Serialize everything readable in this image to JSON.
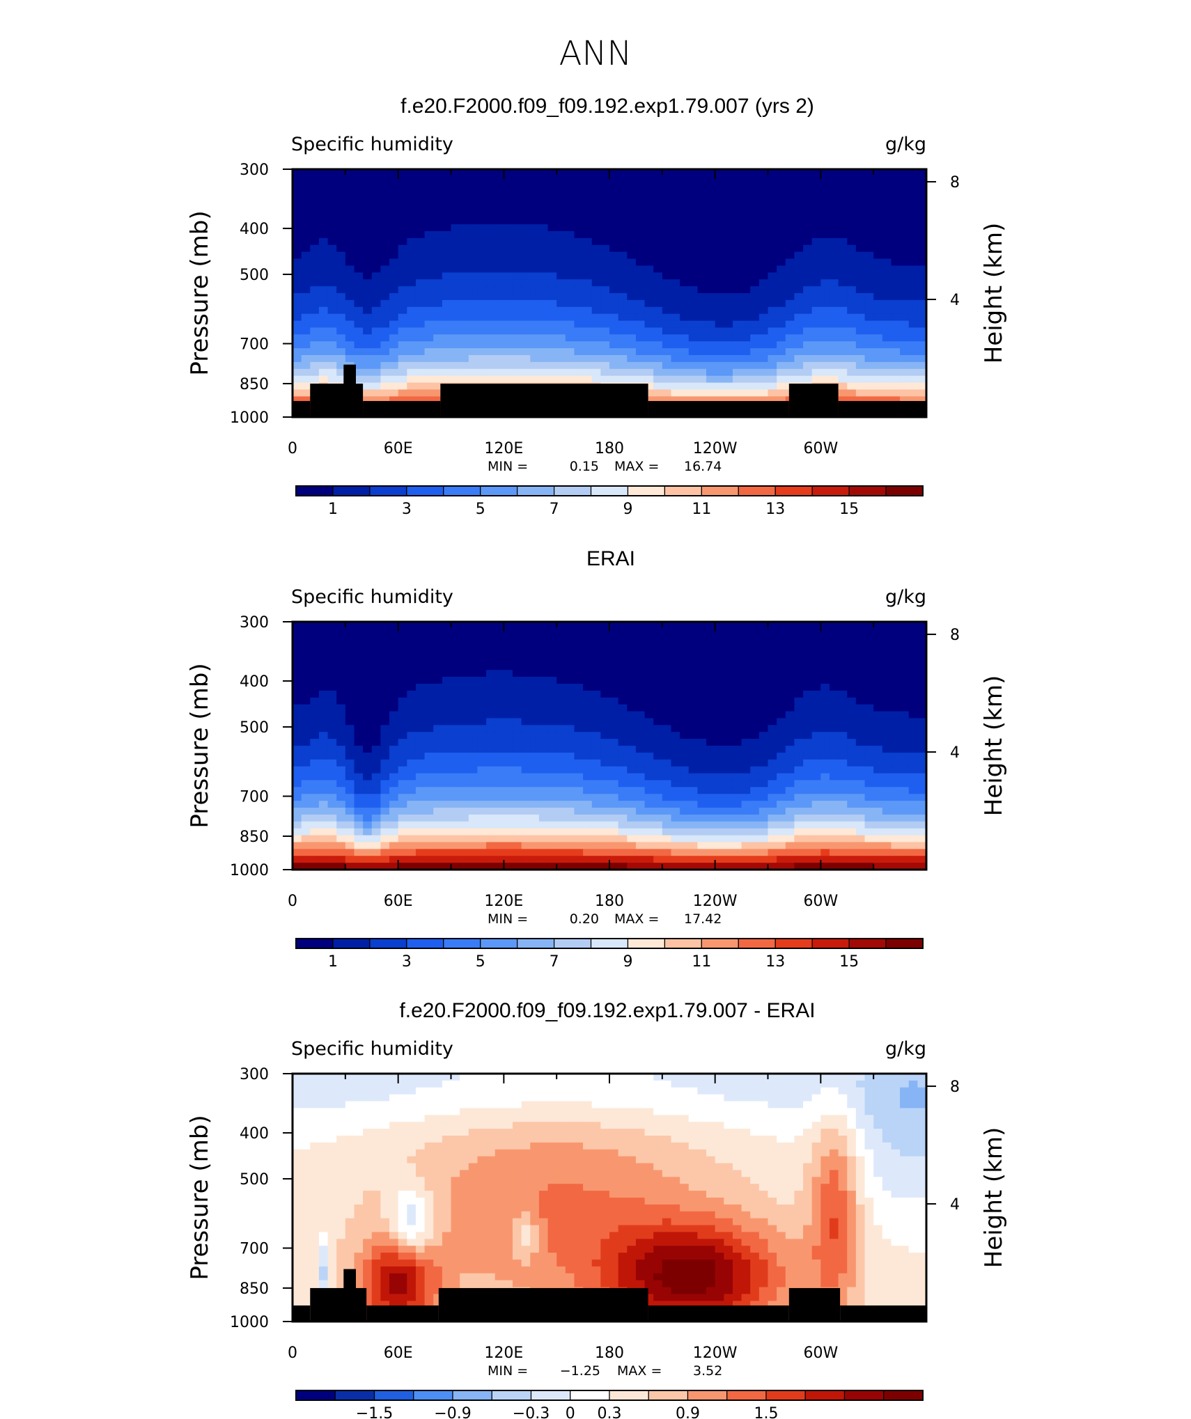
{
  "figure_title": "ANN",
  "colors": {
    "seq_levels": [
      "#00007f",
      "#001fa7",
      "#0a3fcf",
      "#1f5ff0",
      "#3a7cf7",
      "#5c98f7",
      "#87b4f5",
      "#b3ccf3",
      "#d8e7f9",
      "#ffe8d6",
      "#fdc3a4",
      "#f8976f",
      "#f26843",
      "#e53c1c",
      "#c91b0b",
      "#a30a06",
      "#7d0000"
    ],
    "diff_levels": [
      "#00007f",
      "#0a2ea8",
      "#1f5fe0",
      "#4d8ef5",
      "#87b4f5",
      "#bad4f8",
      "#dde9fb",
      "#ffffff",
      "#fde8d8",
      "#fcc7a8",
      "#f8976f",
      "#f26843",
      "#e03c1c",
      "#c01608",
      "#980404",
      "#7d0000"
    ]
  },
  "chart_data": [
    {
      "type": "heatmap",
      "title": "f.e20.F2000.f09_f09.192.exp1.79.007 (yrs 2)",
      "left_label": "Specific humidity",
      "right_label": "g/kg",
      "ylabel": "Pressure (mb)",
      "ylabel_right": "Height (km)",
      "x_ticks": [
        "0",
        "60E",
        "120E",
        "180",
        "120W",
        "60W"
      ],
      "x_tick_values": [
        0,
        60,
        120,
        180,
        240,
        300
      ],
      "xlim": [
        0,
        360
      ],
      "y_ticks": [
        "300",
        "400",
        "500",
        "700",
        "850",
        "1000"
      ],
      "y_tick_values": [
        300,
        400,
        500,
        700,
        850,
        1000
      ],
      "ylim": [
        1000,
        300
      ],
      "y_right_ticks": [
        "8",
        "4"
      ],
      "y_right_values": [
        8,
        4
      ],
      "stats": {
        "min_label": "MIN =",
        "min": "0.15",
        "max_label": "MAX =",
        "max": "16.74"
      },
      "colorbar": {
        "ticks": [
          "1",
          "3",
          "5",
          "7",
          "9",
          "11",
          "13",
          "15"
        ],
        "values": [
          1,
          3,
          5,
          7,
          9,
          11,
          13,
          15
        ],
        "levels": [
          1,
          2,
          3,
          4,
          5,
          6,
          7,
          8,
          9,
          10,
          11,
          12,
          13,
          14,
          15,
          16
        ]
      },
      "field": {
        "kind": "seq",
        "min": 0.15,
        "max": 16.74
      },
      "terrain": [
        [
          0,
          10,
          1000,
          925
        ],
        [
          10,
          40,
          1000,
          850
        ],
        [
          29,
          36,
          1000,
          775
        ],
        [
          40,
          84,
          1000,
          925
        ],
        [
          84,
          202,
          1000,
          850
        ],
        [
          202,
          282,
          1000,
          925
        ],
        [
          282,
          310,
          1000,
          850
        ],
        [
          310,
          360,
          1000,
          925
        ]
      ]
    },
    {
      "type": "heatmap",
      "title": "ERAI",
      "left_label": "Specific humidity",
      "right_label": "g/kg",
      "ylabel": "Pressure (mb)",
      "ylabel_right": "Height (km)",
      "x_ticks": [
        "0",
        "60E",
        "120E",
        "180",
        "120W",
        "60W"
      ],
      "x_tick_values": [
        0,
        60,
        120,
        180,
        240,
        300
      ],
      "xlim": [
        0,
        360
      ],
      "y_ticks": [
        "300",
        "400",
        "500",
        "700",
        "850",
        "1000"
      ],
      "y_tick_values": [
        300,
        400,
        500,
        700,
        850,
        1000
      ],
      "ylim": [
        1000,
        300
      ],
      "y_right_ticks": [
        "8",
        "4"
      ],
      "y_right_values": [
        8,
        4
      ],
      "stats": {
        "min_label": "MIN =",
        "min": "0.20",
        "max_label": "MAX =",
        "max": "17.42"
      },
      "colorbar": {
        "ticks": [
          "1",
          "3",
          "5",
          "7",
          "9",
          "11",
          "13",
          "15"
        ],
        "values": [
          1,
          3,
          5,
          7,
          9,
          11,
          13,
          15
        ],
        "levels": [
          1,
          2,
          3,
          4,
          5,
          6,
          7,
          8,
          9,
          10,
          11,
          12,
          13,
          14,
          15,
          16
        ]
      },
      "field": {
        "kind": "seq",
        "min": 0.2,
        "max": 17.42
      },
      "terrain": []
    },
    {
      "type": "heatmap",
      "title": "f.e20.F2000.f09_f09.192.exp1.79.007 - ERAI",
      "left_label": "Specific humidity",
      "right_label": "g/kg",
      "ylabel": "Pressure (mb)",
      "ylabel_right": "Height (km)",
      "x_ticks": [
        "0",
        "60E",
        "120E",
        "180",
        "120W",
        "60W"
      ],
      "x_tick_values": [
        0,
        60,
        120,
        180,
        240,
        300
      ],
      "xlim": [
        0,
        360
      ],
      "y_ticks": [
        "300",
        "400",
        "500",
        "700",
        "850",
        "1000"
      ],
      "y_tick_values": [
        300,
        400,
        500,
        700,
        850,
        1000
      ],
      "ylim": [
        1000,
        300
      ],
      "y_right_ticks": [
        "8",
        "4"
      ],
      "y_right_values": [
        8,
        4
      ],
      "stats": {
        "min_label": "MIN =",
        "min": "−1.25",
        "max_label": "MAX =",
        "max": "3.52"
      },
      "colorbar": {
        "ticks": [
          "−1.5",
          "−0.9",
          "−0.3",
          "0",
          "0.3",
          "0.9",
          "1.5"
        ],
        "values": [
          -1.5,
          -0.9,
          -0.3,
          0,
          0.3,
          0.9,
          1.5
        ],
        "levels": [
          -1.8,
          -1.5,
          -1.2,
          -0.9,
          -0.6,
          -0.3,
          0,
          0.3,
          0.6,
          0.9,
          1.2,
          1.5,
          1.8,
          2.1,
          2.4
        ]
      },
      "field": {
        "kind": "diff",
        "min": -1.25,
        "max": 3.52
      },
      "terrain": [
        [
          0,
          10,
          1000,
          925
        ],
        [
          10,
          42,
          1000,
          850
        ],
        [
          29,
          36,
          1000,
          775
        ],
        [
          42,
          83,
          1000,
          925
        ],
        [
          83,
          202,
          1000,
          850
        ],
        [
          202,
          282,
          1000,
          925
        ],
        [
          282,
          311,
          1000,
          850
        ],
        [
          311,
          360,
          1000,
          925
        ]
      ]
    }
  ]
}
